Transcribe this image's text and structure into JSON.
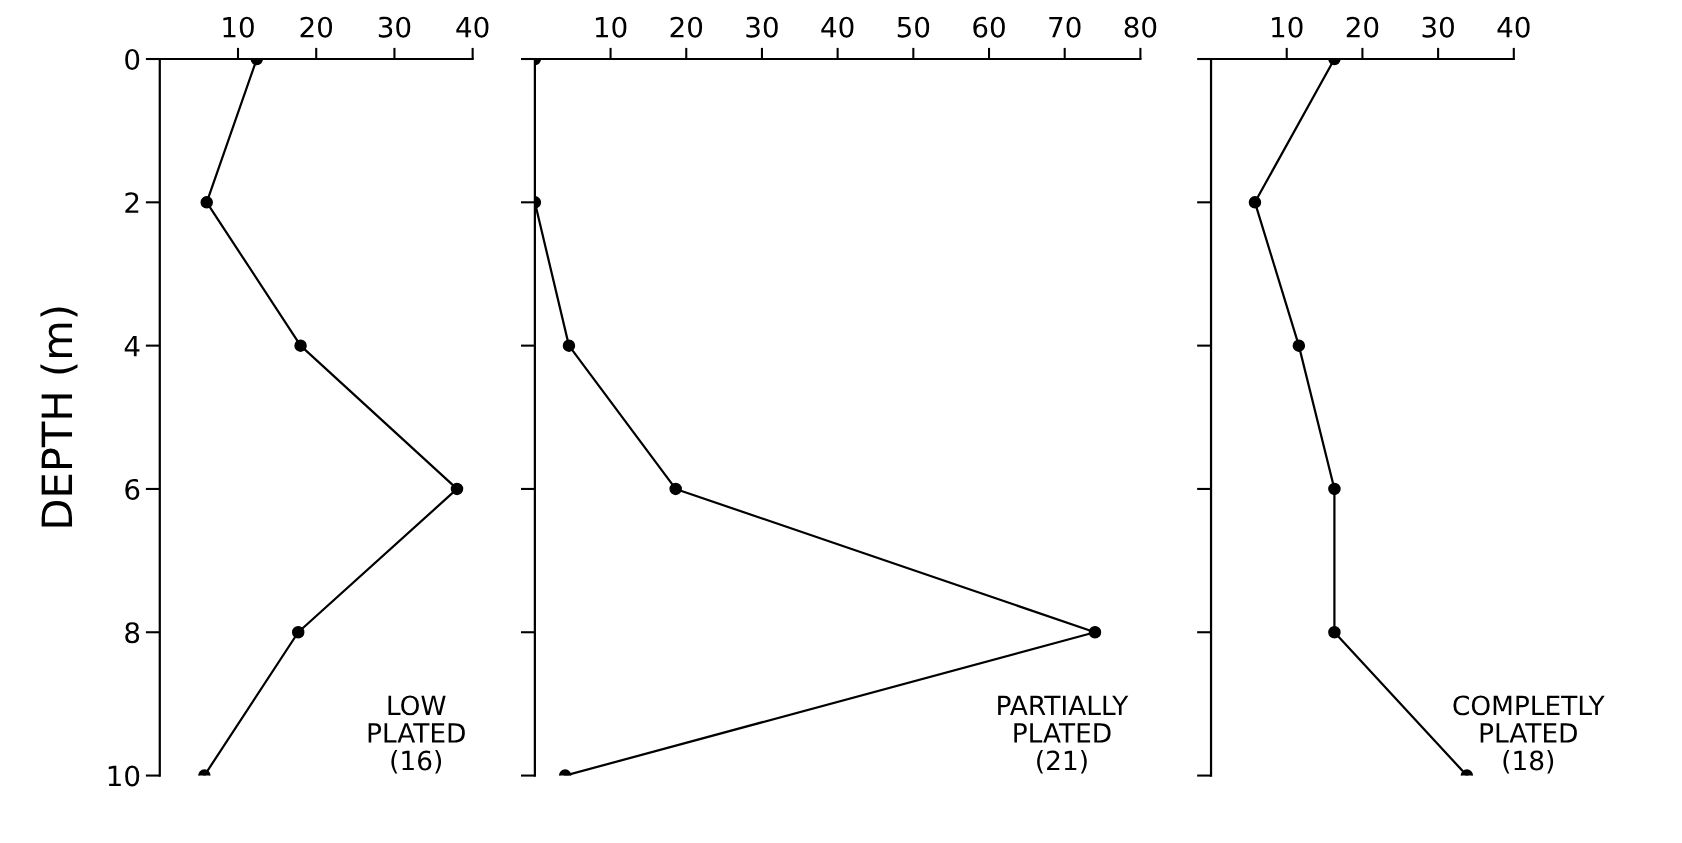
{
  "chart_data": [
    {
      "type": "line",
      "orientation": "horizontal",
      "ylabel": "DEPTH (m)",
      "x": [
        0,
        2,
        4,
        6,
        8,
        10
      ],
      "values": [
        12.4,
        6,
        18,
        38,
        17.7,
        5.7
      ],
      "color": "#000000",
      "marker": "circle",
      "line_style": "solid",
      "xlim": [
        0,
        40
      ],
      "xticks": [
        10,
        20,
        30,
        40
      ],
      "ylim": [
        10,
        0
      ],
      "yticks": [
        0,
        2,
        4,
        6,
        8,
        10
      ],
      "annotations": [
        "LOW\nPLATED\n(16)"
      ]
    },
    {
      "type": "line",
      "orientation": "horizontal",
      "x": [
        0,
        2,
        4,
        6,
        8,
        10
      ],
      "values": [
        0,
        0,
        4.5,
        18.6,
        74,
        4
      ],
      "color": "#000000",
      "marker": "circle",
      "line_style": "solid",
      "xlim": [
        0,
        80
      ],
      "xticks": [
        10,
        20,
        30,
        40,
        50,
        60,
        70,
        80
      ],
      "ylim": [
        10,
        0
      ],
      "yticks": [
        0,
        2,
        4,
        6,
        8,
        10
      ],
      "tick_labels": "x",
      "annotations": [
        "PARTIALLY\nPLATED\n(21)"
      ]
    },
    {
      "type": "line",
      "orientation": "horizontal",
      "x": [
        0,
        2,
        4,
        6,
        8,
        10
      ],
      "values": [
        16.3,
        5.8,
        11.6,
        16.3,
        16.3,
        33.8
      ],
      "color": "#000000",
      "marker": "circle",
      "line_style": "solid",
      "xlim": [
        0,
        40
      ],
      "xticks": [
        10,
        20,
        30,
        40
      ],
      "ylim": [
        10,
        0
      ],
      "yticks": [
        0,
        2,
        4,
        6,
        8,
        10
      ],
      "tick_labels": "x",
      "annotations": [
        "COMPLETLY\nPLATED\n(18)"
      ]
    }
  ]
}
